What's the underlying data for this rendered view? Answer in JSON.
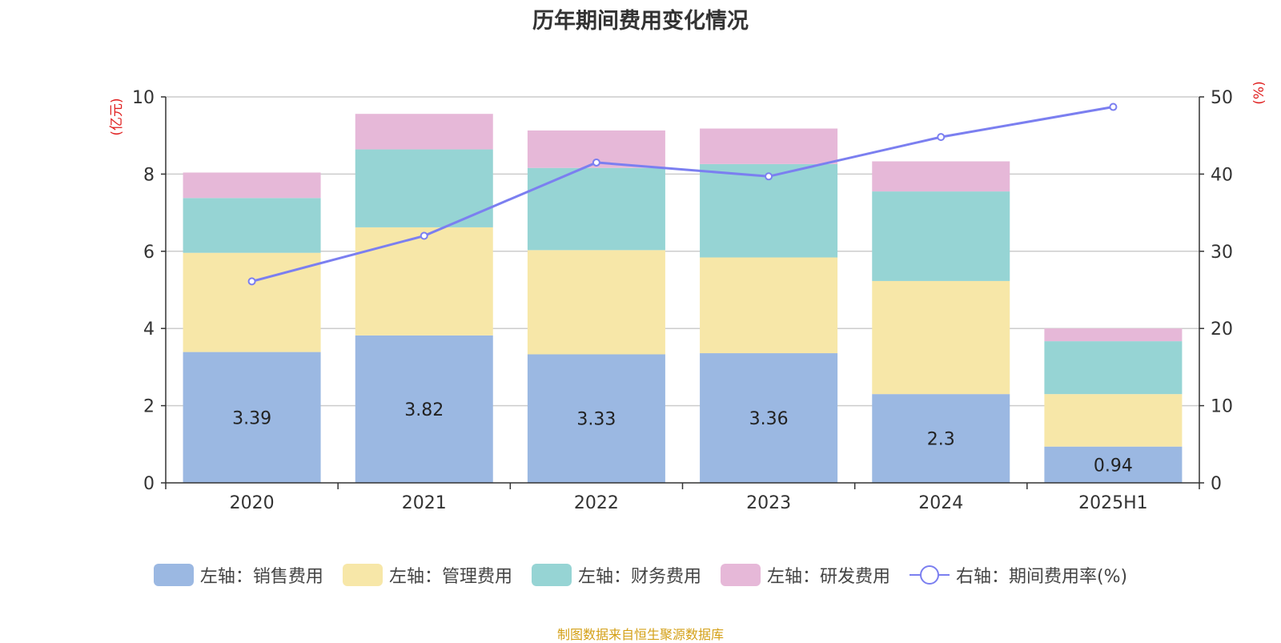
{
  "title": "历年期间费用变化情况",
  "source_note": "制图数据来自恒生聚源数据库",
  "chart_data": {
    "type": "bar",
    "stacked": true,
    "categories": [
      "2020",
      "2021",
      "2022",
      "2023",
      "2024",
      "2025H1"
    ],
    "series": [
      {
        "name": "左轴：销售费用",
        "axis": "left",
        "color": "#9bb8e2",
        "values": [
          3.39,
          3.82,
          3.33,
          3.36,
          2.3,
          0.94
        ],
        "labels": [
          "3.39",
          "3.82",
          "3.33",
          "3.36",
          "2.3",
          "0.94"
        ]
      },
      {
        "name": "左轴：管理费用",
        "axis": "left",
        "color": "#f7e7a8",
        "values": [
          2.57,
          2.8,
          2.7,
          2.48,
          2.93,
          1.36
        ]
      },
      {
        "name": "左轴：财务费用",
        "axis": "left",
        "color": "#96d4d4",
        "values": [
          1.42,
          2.02,
          2.13,
          2.42,
          2.32,
          1.37
        ]
      },
      {
        "name": "左轴：研发费用",
        "axis": "left",
        "color": "#e6b8d8",
        "values": [
          0.66,
          0.92,
          0.97,
          0.92,
          0.78,
          0.33
        ]
      },
      {
        "name": "右轴：期间费用率(%)",
        "axis": "right",
        "type": "line",
        "color": "#7b7ff0",
        "values": [
          26.1,
          32.0,
          41.5,
          39.7,
          44.8,
          48.7
        ]
      }
    ],
    "left_axis": {
      "label": "(亿元)",
      "ylim": [
        0,
        10
      ],
      "ticks": [
        "0",
        "2",
        "4",
        "6",
        "8",
        "10"
      ]
    },
    "right_axis": {
      "label": "(%)",
      "ylim": [
        0,
        50
      ],
      "ticks": [
        "0",
        "10",
        "20",
        "30",
        "40",
        "50"
      ]
    },
    "grid": true,
    "legend_position": "bottom"
  }
}
